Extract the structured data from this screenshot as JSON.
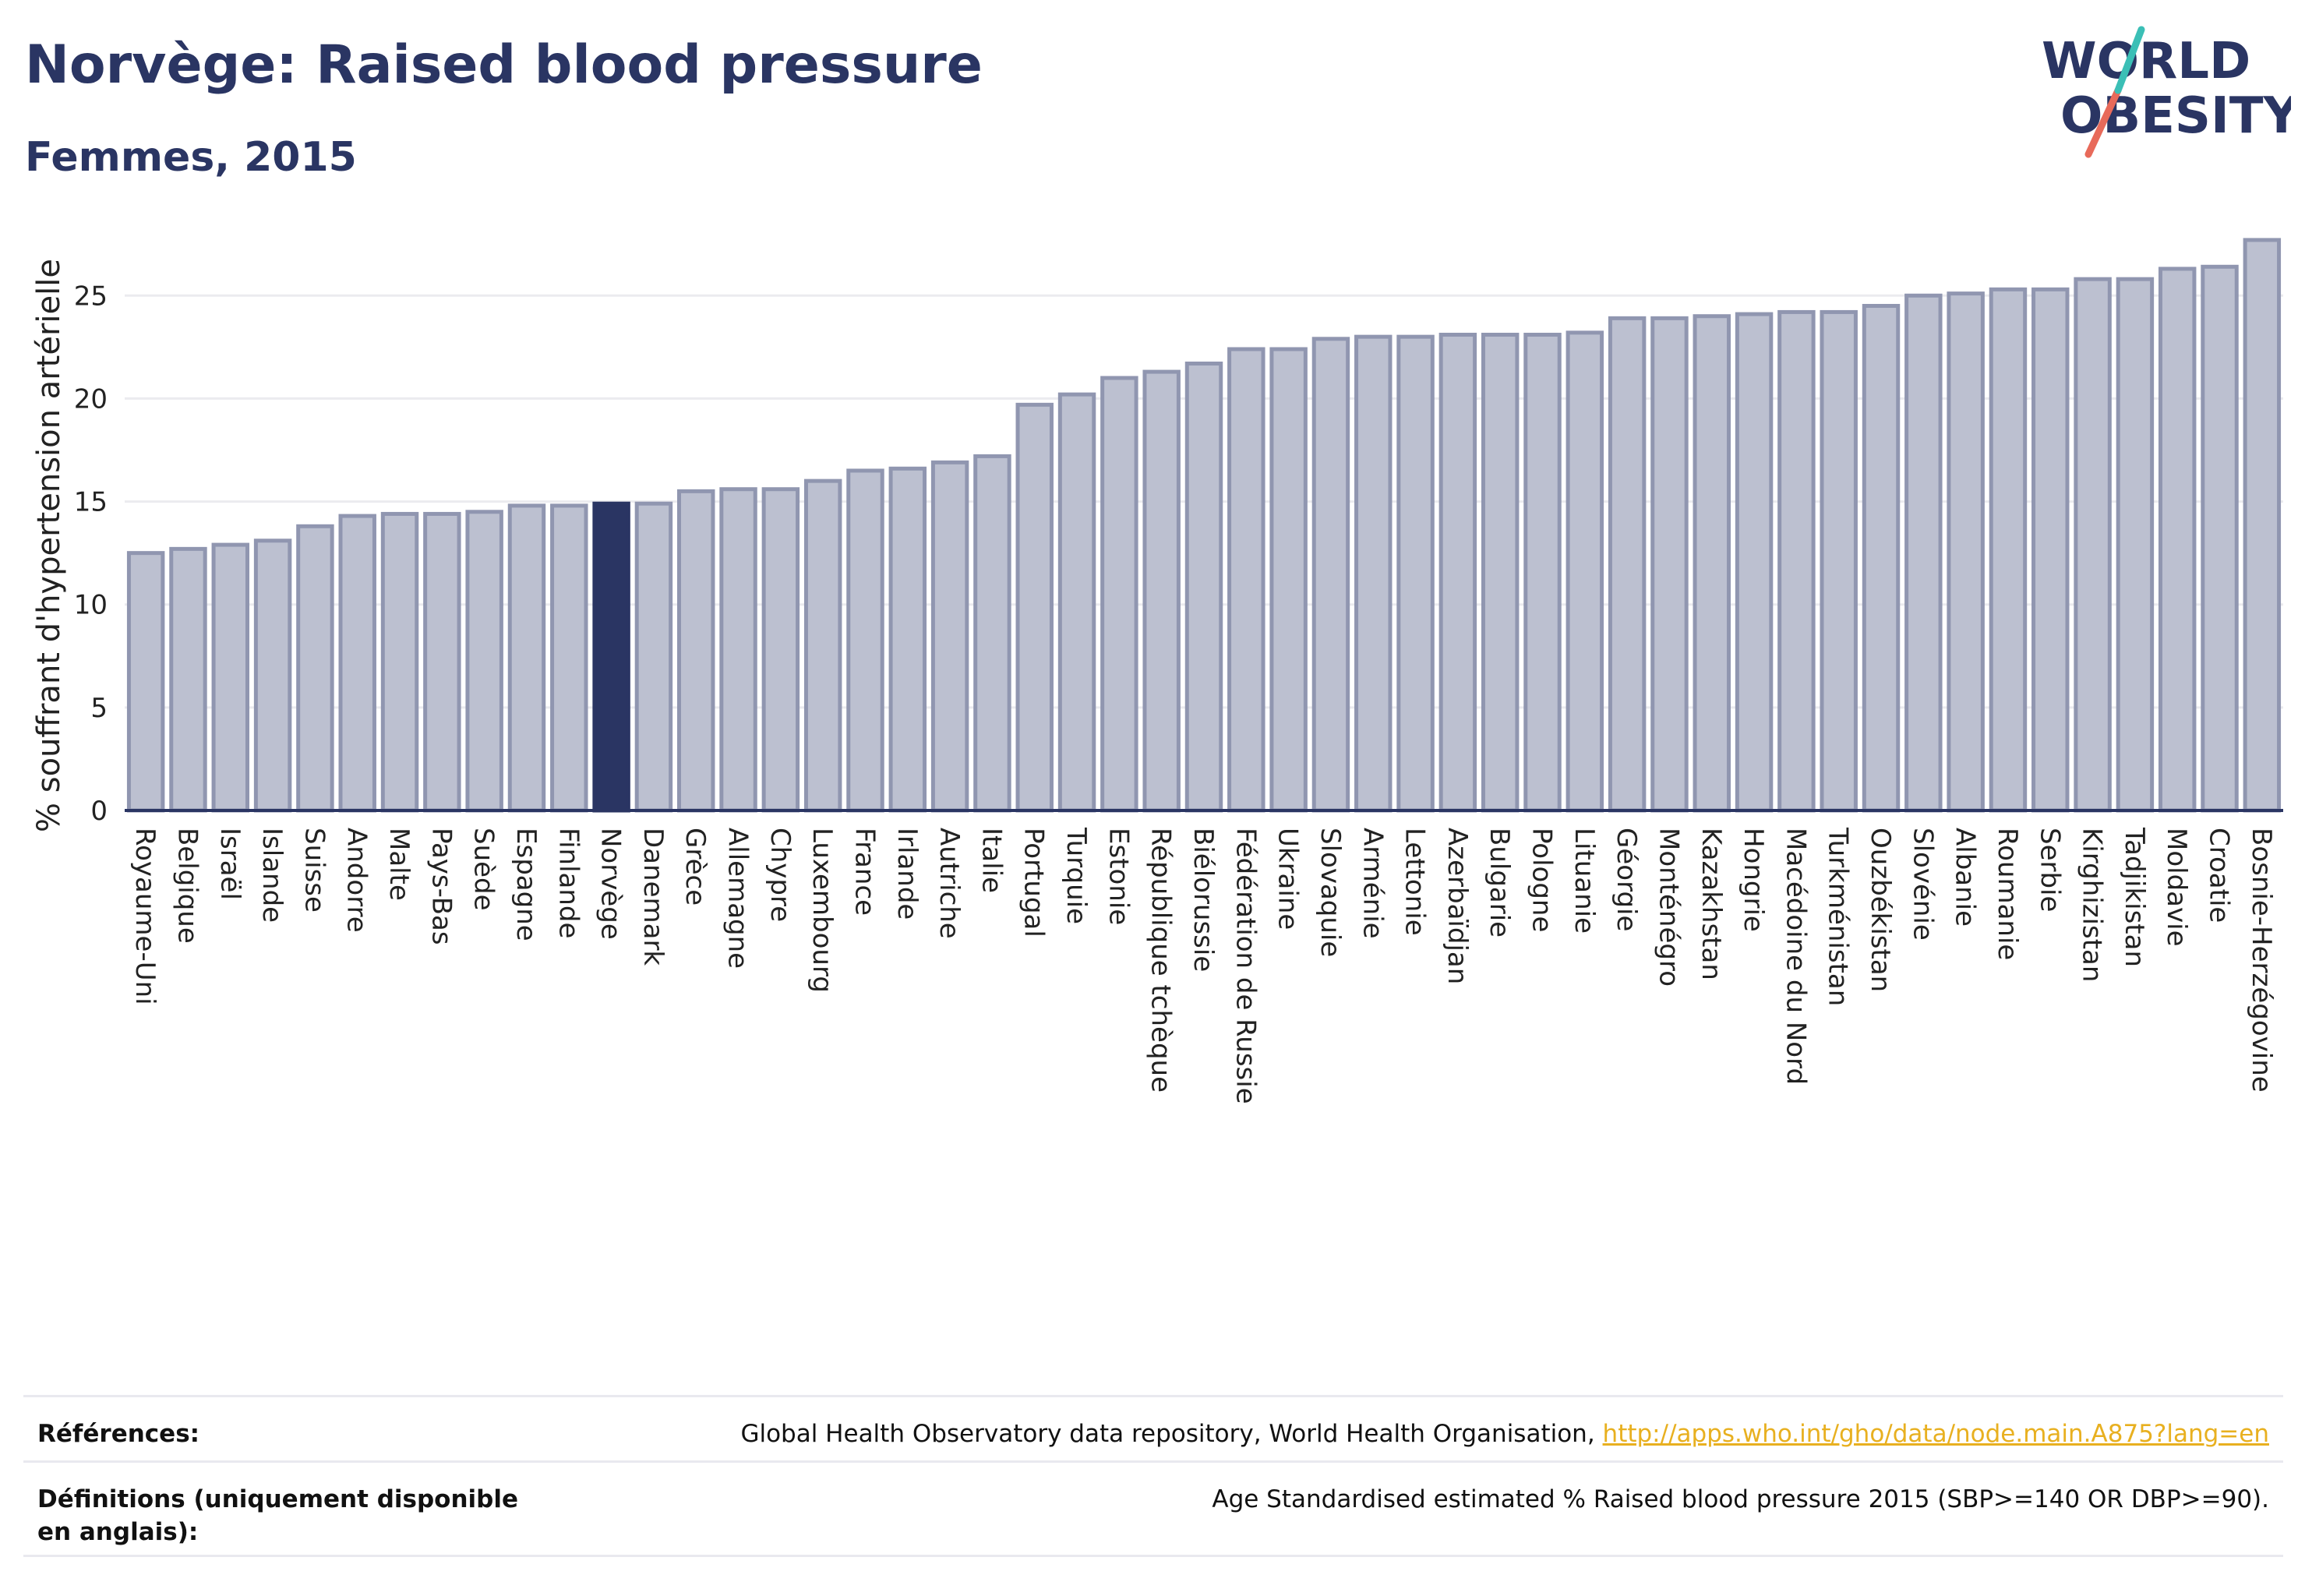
{
  "header": {
    "title": "Norvège: Raised blood pressure",
    "subtitle": "Femmes, 2015"
  },
  "logo": {
    "line1": "WORLD",
    "line2": "OBESITY"
  },
  "colors": {
    "highlight": "#2a3563",
    "bar_fill": "#bcc0d0",
    "bar_stroke": "#9096b0",
    "text": "#2a3563",
    "link": "#e8b020",
    "logo_teal": "#3bbfb6",
    "logo_coral": "#e86a5a"
  },
  "chart_data": {
    "type": "bar",
    "ylabel": "% souffrant d'hypertension artérielle",
    "xlabel": "",
    "ylim": [
      0,
      28
    ],
    "yticks": [
      0,
      5,
      10,
      15,
      20,
      25
    ],
    "grid": true,
    "highlight": "Norvège",
    "categories": [
      "Royaume-Uni",
      "Belgique",
      "Israël",
      "Islande",
      "Suisse",
      "Andorre",
      "Malte",
      "Pays-Bas",
      "Suède",
      "Espagne",
      "Finlande",
      "Norvège",
      "Danemark",
      "Grèce",
      "Allemagne",
      "Chypre",
      "Luxembourg",
      "France",
      "Irlande",
      "Autriche",
      "Italie",
      "Portugal",
      "Turquie",
      "Estonie",
      "République tchèque",
      "Biélorussie",
      "Fédération de Russie",
      "Ukraine",
      "Slovaquie",
      "Arménie",
      "Lettonie",
      "Azerbaïdjan",
      "Bulgarie",
      "Pologne",
      "Lituanie",
      "Géorgie",
      "Monténégro",
      "Kazakhstan",
      "Hongrie",
      "Macédoine du Nord",
      "Turkménistan",
      "Ouzbékistan",
      "Slovénie",
      "Albanie",
      "Roumanie",
      "Serbie",
      "Kirghizistan",
      "Tadjikistan",
      "Moldavie",
      "Croatie",
      "Bosnie-Herzégovine"
    ],
    "values": [
      12.5,
      12.7,
      12.9,
      13.1,
      13.8,
      14.3,
      14.4,
      14.4,
      14.5,
      14.8,
      14.8,
      14.9,
      14.9,
      15.5,
      15.6,
      15.6,
      16.0,
      16.5,
      16.6,
      16.9,
      17.2,
      19.7,
      20.2,
      21.0,
      21.3,
      21.7,
      22.4,
      22.4,
      22.9,
      23.0,
      23.0,
      23.1,
      23.1,
      23.1,
      23.2,
      23.9,
      23.9,
      24.0,
      24.1,
      24.2,
      24.2,
      24.5,
      25.0,
      25.1,
      25.3,
      25.3,
      25.8,
      25.8,
      26.3,
      26.4,
      27.7
    ]
  },
  "references": {
    "sources_label": "Références:",
    "sources_text": "Global Health Observatory data repository, World Health Organisation, ",
    "sources_link": "http://apps.who.int/gho/data/node.main.A875?lang=en",
    "definitions_label": "Définitions (uniquement disponible en anglais):",
    "definitions_text": "Age Standardised estimated % Raised blood pressure 2015 (SBP>=140 OR DBP>=90)."
  }
}
